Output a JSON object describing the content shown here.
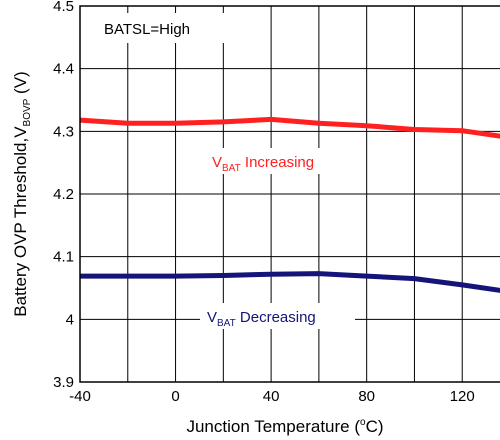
{
  "chart_data": {
    "type": "line",
    "xlabel": {
      "main": "Junction Temperature (",
      "sup": "o",
      "end": "C)"
    },
    "ylabel": {
      "main": "Battery OVP Threshold,V",
      "sub": "BOVP",
      "end": " (V)"
    },
    "xlim": [
      -40,
      140
    ],
    "ylim": [
      3.9,
      4.5
    ],
    "x_ticks": [
      -40,
      0,
      40,
      80,
      120
    ],
    "x_tick_labels": [
      "-40",
      "0",
      "40",
      "80",
      "120"
    ],
    "y_ticks": [
      3.9,
      4.0,
      4.1,
      4.2,
      4.3,
      4.4,
      4.5
    ],
    "y_tick_labels": [
      "3.9",
      "4",
      "4.1",
      "4.2",
      "4.3",
      "4.4",
      "4.5"
    ],
    "x_grid_step": 20,
    "grid": true,
    "annotation_box": "BATSL=High",
    "series": [
      {
        "label_main": "V",
        "label_sub": "BAT",
        "label_end": " Increasing",
        "color": "#ff2020",
        "x": [
          -40,
          -20,
          0,
          20,
          40,
          60,
          80,
          100,
          120,
          140
        ],
        "y": [
          4.318,
          4.313,
          4.313,
          4.315,
          4.319,
          4.313,
          4.309,
          4.303,
          4.301,
          4.29
        ]
      },
      {
        "label_main": "V",
        "label_sub": "BAT",
        "label_end": " Decreasing",
        "color": "#14147a",
        "x": [
          -40,
          -20,
          0,
          20,
          40,
          60,
          80,
          100,
          120,
          140
        ],
        "y": [
          4.069,
          4.069,
          4.069,
          4.07,
          4.072,
          4.073,
          4.069,
          4.065,
          4.055,
          4.044
        ]
      }
    ]
  }
}
